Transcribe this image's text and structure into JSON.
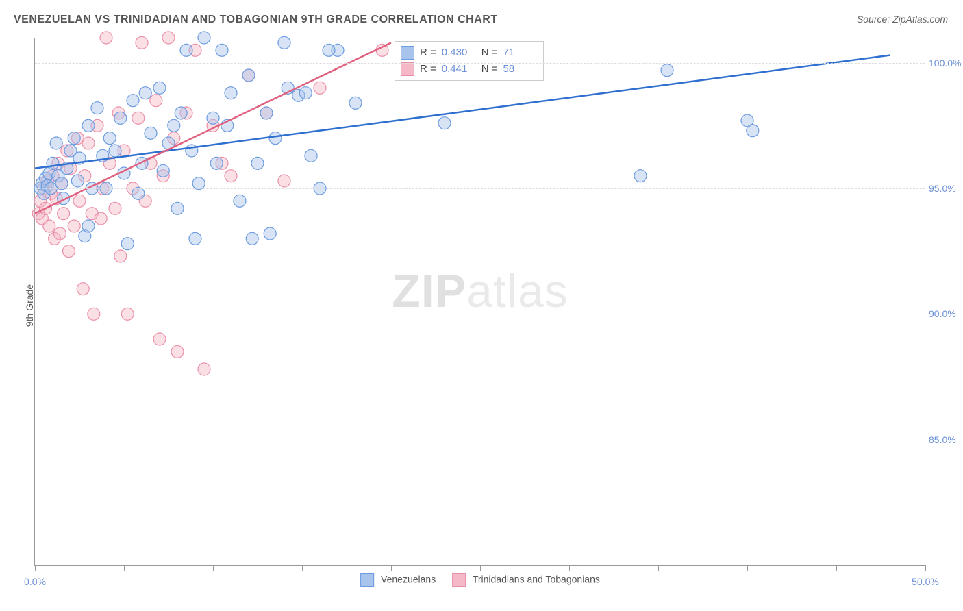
{
  "title": "VENEZUELAN VS TRINIDADIAN AND TOBAGONIAN 9TH GRADE CORRELATION CHART",
  "source": "Source: ZipAtlas.com",
  "ylabel": "9th Grade",
  "watermark_zip": "ZIP",
  "watermark_atlas": "atlas",
  "chart": {
    "type": "scatter-with-regression",
    "xlim": [
      0,
      50
    ],
    "ylim": [
      80,
      101
    ],
    "x_ticks": [
      0,
      5,
      10,
      15,
      20,
      25,
      30,
      35,
      40,
      45,
      50
    ],
    "x_tick_labels": {
      "0": "0.0%",
      "50": "50.0%"
    },
    "y_ticks": [
      85,
      90,
      95,
      100
    ],
    "y_tick_labels": {
      "85": "85.0%",
      "90": "90.0%",
      "95": "95.0%",
      "100": "100.0%"
    },
    "background_color": "#ffffff",
    "grid_color": "#dddddd",
    "series": [
      {
        "name": "Venezuelans",
        "label": "Venezuelans",
        "color_fill": "#a8c4ec",
        "color_stroke": "#6b9be0",
        "marker_radius": 9,
        "fill_opacity": 0.45,
        "regression": {
          "x1": 0,
          "y1": 95.8,
          "x2": 48,
          "y2": 100.3,
          "color": "#2f6fd0",
          "width": 2.5
        },
        "stats": {
          "R": "0.430",
          "N": "71"
        },
        "points": [
          [
            0.3,
            95.0
          ],
          [
            0.4,
            95.2
          ],
          [
            0.5,
            94.8
          ],
          [
            0.6,
            95.4
          ],
          [
            0.7,
            95.1
          ],
          [
            0.8,
            95.6
          ],
          [
            0.9,
            95.0
          ],
          [
            1.0,
            96.0
          ],
          [
            1.2,
            96.8
          ],
          [
            1.3,
            95.5
          ],
          [
            1.5,
            95.2
          ],
          [
            1.6,
            94.6
          ],
          [
            1.8,
            95.8
          ],
          [
            2.0,
            96.5
          ],
          [
            2.2,
            97.0
          ],
          [
            2.4,
            95.3
          ],
          [
            2.5,
            96.2
          ],
          [
            2.8,
            93.1
          ],
          [
            3.0,
            97.5
          ],
          [
            3.2,
            95.0
          ],
          [
            3.5,
            98.2
          ],
          [
            3.8,
            96.3
          ],
          [
            4.0,
            95.0
          ],
          [
            4.5,
            96.5
          ],
          [
            4.8,
            97.8
          ],
          [
            5.0,
            95.6
          ],
          [
            5.5,
            98.5
          ],
          [
            5.8,
            94.8
          ],
          [
            6.0,
            96.0
          ],
          [
            6.5,
            97.2
          ],
          [
            7.0,
            99.0
          ],
          [
            7.2,
            95.7
          ],
          [
            7.5,
            96.8
          ],
          [
            8.0,
            94.2
          ],
          [
            8.2,
            98.0
          ],
          [
            8.5,
            100.5
          ],
          [
            8.8,
            96.5
          ],
          [
            9.0,
            93.0
          ],
          [
            9.5,
            101.0
          ],
          [
            10.0,
            97.8
          ],
          [
            10.2,
            96.0
          ],
          [
            10.5,
            100.5
          ],
          [
            11.0,
            98.8
          ],
          [
            11.5,
            94.5
          ],
          [
            12.0,
            99.5
          ],
          [
            12.5,
            96.0
          ],
          [
            13.0,
            98.0
          ],
          [
            13.2,
            93.2
          ],
          [
            13.5,
            97.0
          ],
          [
            14.0,
            100.8
          ],
          [
            14.8,
            98.7
          ],
          [
            15.2,
            98.8
          ],
          [
            15.5,
            96.3
          ],
          [
            16.0,
            95.0
          ],
          [
            17.0,
            100.5
          ],
          [
            18.0,
            98.4
          ],
          [
            23.0,
            97.6
          ],
          [
            34.0,
            95.5
          ],
          [
            35.5,
            99.7
          ],
          [
            40.0,
            97.7
          ],
          [
            40.3,
            97.3
          ],
          [
            3.0,
            93.5
          ],
          [
            4.2,
            97.0
          ],
          [
            5.2,
            92.8
          ],
          [
            6.2,
            98.8
          ],
          [
            7.8,
            97.5
          ],
          [
            9.2,
            95.2
          ],
          [
            10.8,
            97.5
          ],
          [
            12.2,
            93.0
          ],
          [
            14.2,
            99.0
          ],
          [
            16.5,
            100.5
          ]
        ]
      },
      {
        "name": "Trinidadians and Tobagonians",
        "label": "Trinidadians and Tobagonians",
        "color_fill": "#f5b8c6",
        "color_stroke": "#eb8fa8",
        "marker_radius": 9,
        "fill_opacity": 0.45,
        "regression": {
          "x1": 0,
          "y1": 94.0,
          "x2": 20,
          "y2": 100.8,
          "color": "#e0607f",
          "width": 2.5
        },
        "stats": {
          "R": "0.441",
          "N": "58"
        },
        "points": [
          [
            0.2,
            94.0
          ],
          [
            0.3,
            94.5
          ],
          [
            0.4,
            93.8
          ],
          [
            0.5,
            95.0
          ],
          [
            0.6,
            94.2
          ],
          [
            0.7,
            95.3
          ],
          [
            0.8,
            93.5
          ],
          [
            0.9,
            94.8
          ],
          [
            1.0,
            95.5
          ],
          [
            1.1,
            93.0
          ],
          [
            1.2,
            94.6
          ],
          [
            1.3,
            96.0
          ],
          [
            1.4,
            93.2
          ],
          [
            1.5,
            95.2
          ],
          [
            1.6,
            94.0
          ],
          [
            1.8,
            96.5
          ],
          [
            1.9,
            92.5
          ],
          [
            2.0,
            95.8
          ],
          [
            2.2,
            93.5
          ],
          [
            2.4,
            97.0
          ],
          [
            2.5,
            94.5
          ],
          [
            2.7,
            91.0
          ],
          [
            2.8,
            95.5
          ],
          [
            3.0,
            96.8
          ],
          [
            3.2,
            94.0
          ],
          [
            3.3,
            90.0
          ],
          [
            3.5,
            97.5
          ],
          [
            3.7,
            93.8
          ],
          [
            3.8,
            95.0
          ],
          [
            4.0,
            101.0
          ],
          [
            4.2,
            96.0
          ],
          [
            4.5,
            94.2
          ],
          [
            4.7,
            98.0
          ],
          [
            4.8,
            92.3
          ],
          [
            5.0,
            96.5
          ],
          [
            5.2,
            90.0
          ],
          [
            5.5,
            95.0
          ],
          [
            5.8,
            97.8
          ],
          [
            6.0,
            100.8
          ],
          [
            6.2,
            94.5
          ],
          [
            6.5,
            96.0
          ],
          [
            6.8,
            98.5
          ],
          [
            7.0,
            89.0
          ],
          [
            7.2,
            95.5
          ],
          [
            7.5,
            101.0
          ],
          [
            7.8,
            97.0
          ],
          [
            8.0,
            88.5
          ],
          [
            8.5,
            98.0
          ],
          [
            9.0,
            100.5
          ],
          [
            9.5,
            87.8
          ],
          [
            10.0,
            97.5
          ],
          [
            10.5,
            96.0
          ],
          [
            11.0,
            95.5
          ],
          [
            12.0,
            99.5
          ],
          [
            13.0,
            98.0
          ],
          [
            14.0,
            95.3
          ],
          [
            16.0,
            99.0
          ],
          [
            19.5,
            100.5
          ]
        ]
      }
    ]
  },
  "legend": {
    "series1_label": "Venezuelans",
    "series2_label": "Trinidadians and Tobagonians"
  },
  "stats_labels": {
    "R": "R =",
    "N": "N ="
  }
}
